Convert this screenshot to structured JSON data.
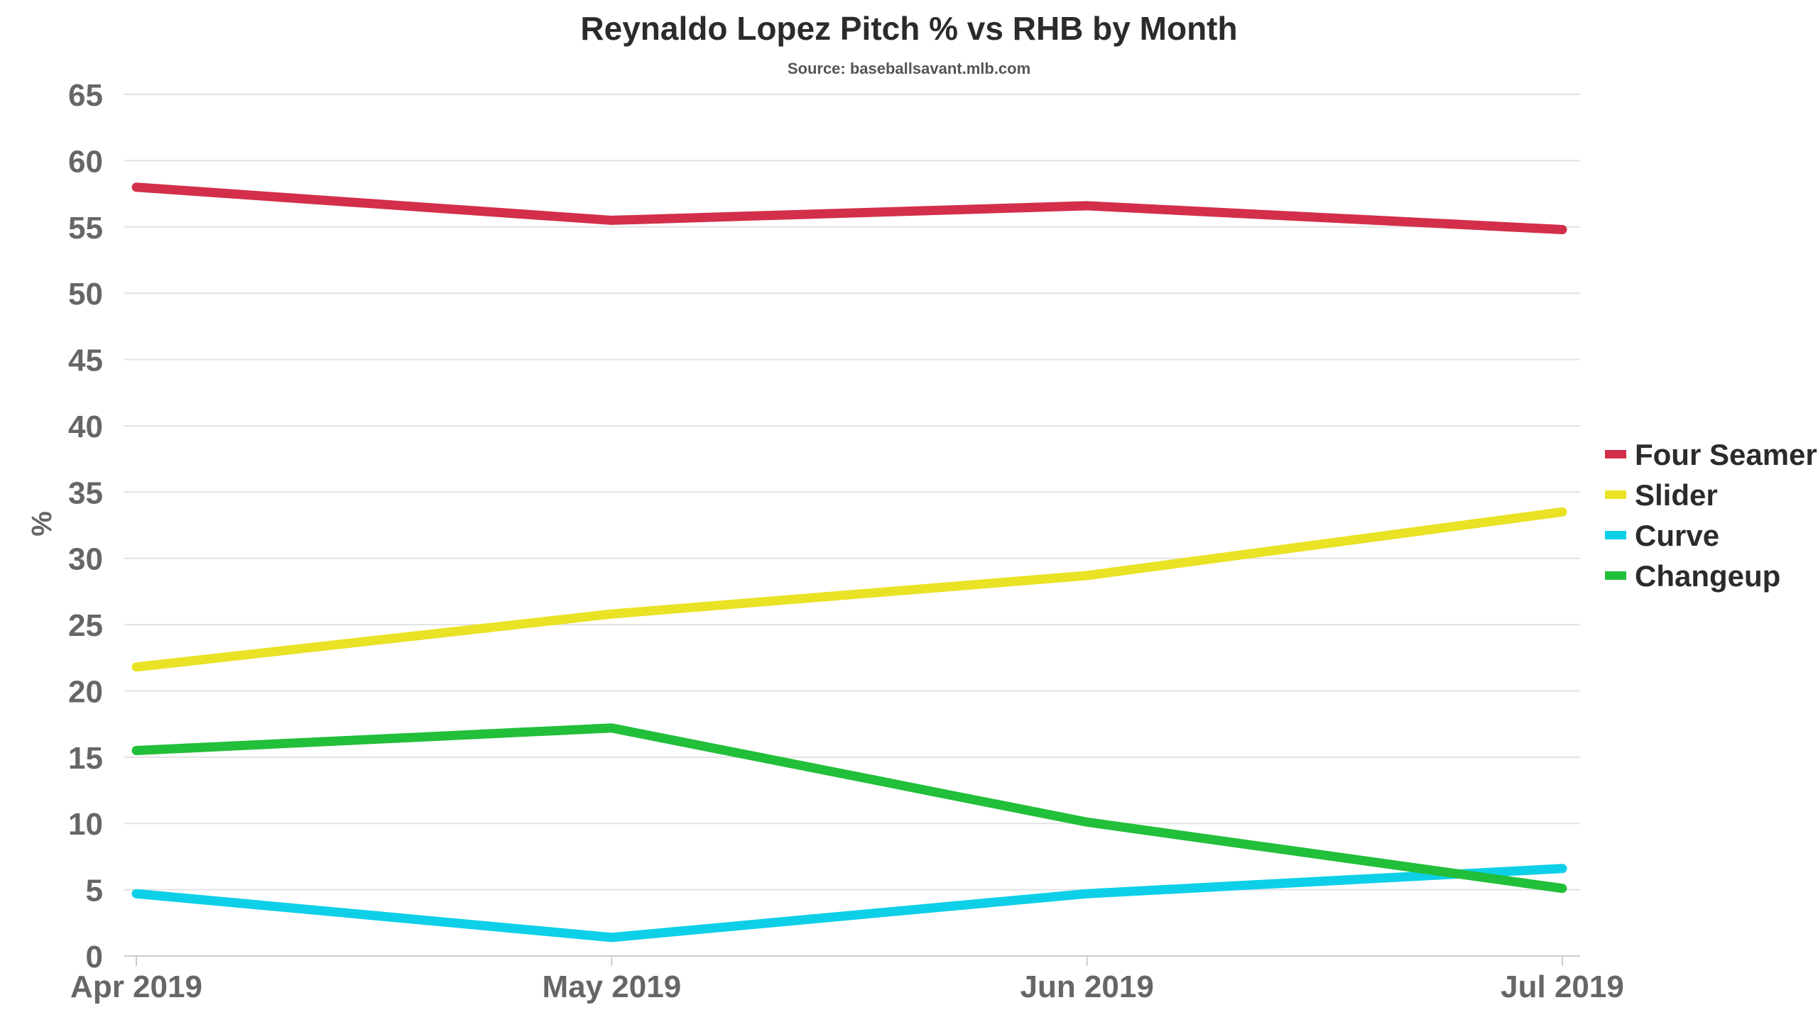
{
  "chart_data": {
    "type": "line",
    "title": "Reynaldo Lopez Pitch % vs RHB by Month",
    "subtitle": "Source: baseballsavant.mlb.com",
    "xlabel": "",
    "ylabel": "%",
    "categories": [
      "Apr 2019",
      "May 2019",
      "Jun 2019",
      "Jul 2019"
    ],
    "ylim": [
      0,
      65
    ],
    "yticks": [
      0,
      5,
      10,
      15,
      20,
      25,
      30,
      35,
      40,
      45,
      50,
      55,
      60,
      65
    ],
    "grid": true,
    "legend_position": "right",
    "series": [
      {
        "name": "Four Seamer",
        "color": "#d32f4a",
        "values": [
          58.0,
          55.5,
          56.6,
          54.8
        ]
      },
      {
        "name": "Slider",
        "color": "#eae225",
        "values": [
          21.8,
          25.8,
          28.7,
          33.5
        ]
      },
      {
        "name": "Curve",
        "color": "#0dd0e8",
        "values": [
          4.7,
          1.4,
          4.7,
          6.6
        ]
      },
      {
        "name": "Changeup",
        "color": "#22bf3a",
        "values": [
          15.5,
          17.2,
          10.1,
          5.1
        ]
      }
    ]
  }
}
